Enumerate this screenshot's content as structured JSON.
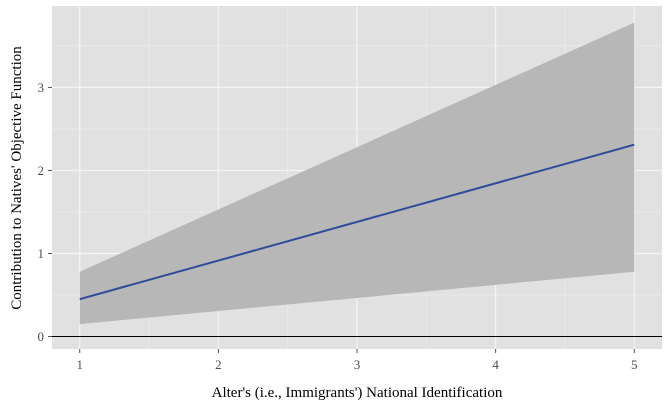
{
  "chart_data": {
    "type": "line",
    "title": "",
    "xlabel": "Alter's (i.e., Immigrants') National Identification",
    "ylabel": "Contribution to Natives' Objective Function",
    "xlim": [
      0.8,
      5.2
    ],
    "ylim": [
      -0.15,
      3.98
    ],
    "x_ticks": [
      1,
      2,
      3,
      4,
      5
    ],
    "x_tick_labels": [
      "1",
      "2",
      "3",
      "4",
      "5"
    ],
    "y_ticks": [
      0,
      1,
      2,
      3
    ],
    "y_tick_labels": [
      "0",
      "1",
      "2",
      "3"
    ],
    "grid": true,
    "reference_line_y": 0,
    "series": [
      {
        "x": [
          1,
          5
        ],
        "values": [
          0.45,
          2.31
        ],
        "ci_lower": [
          0.15,
          0.78
        ],
        "ci_upper": [
          0.78,
          3.78
        ]
      }
    ],
    "colors": {
      "panel": "#e1e1e1",
      "grid_major": "#f5f5f5",
      "grid_minor": "#ebebeb",
      "ribbon": "#b7b7b7",
      "line": "#2e4a9a",
      "reference_line": "#000000"
    }
  }
}
